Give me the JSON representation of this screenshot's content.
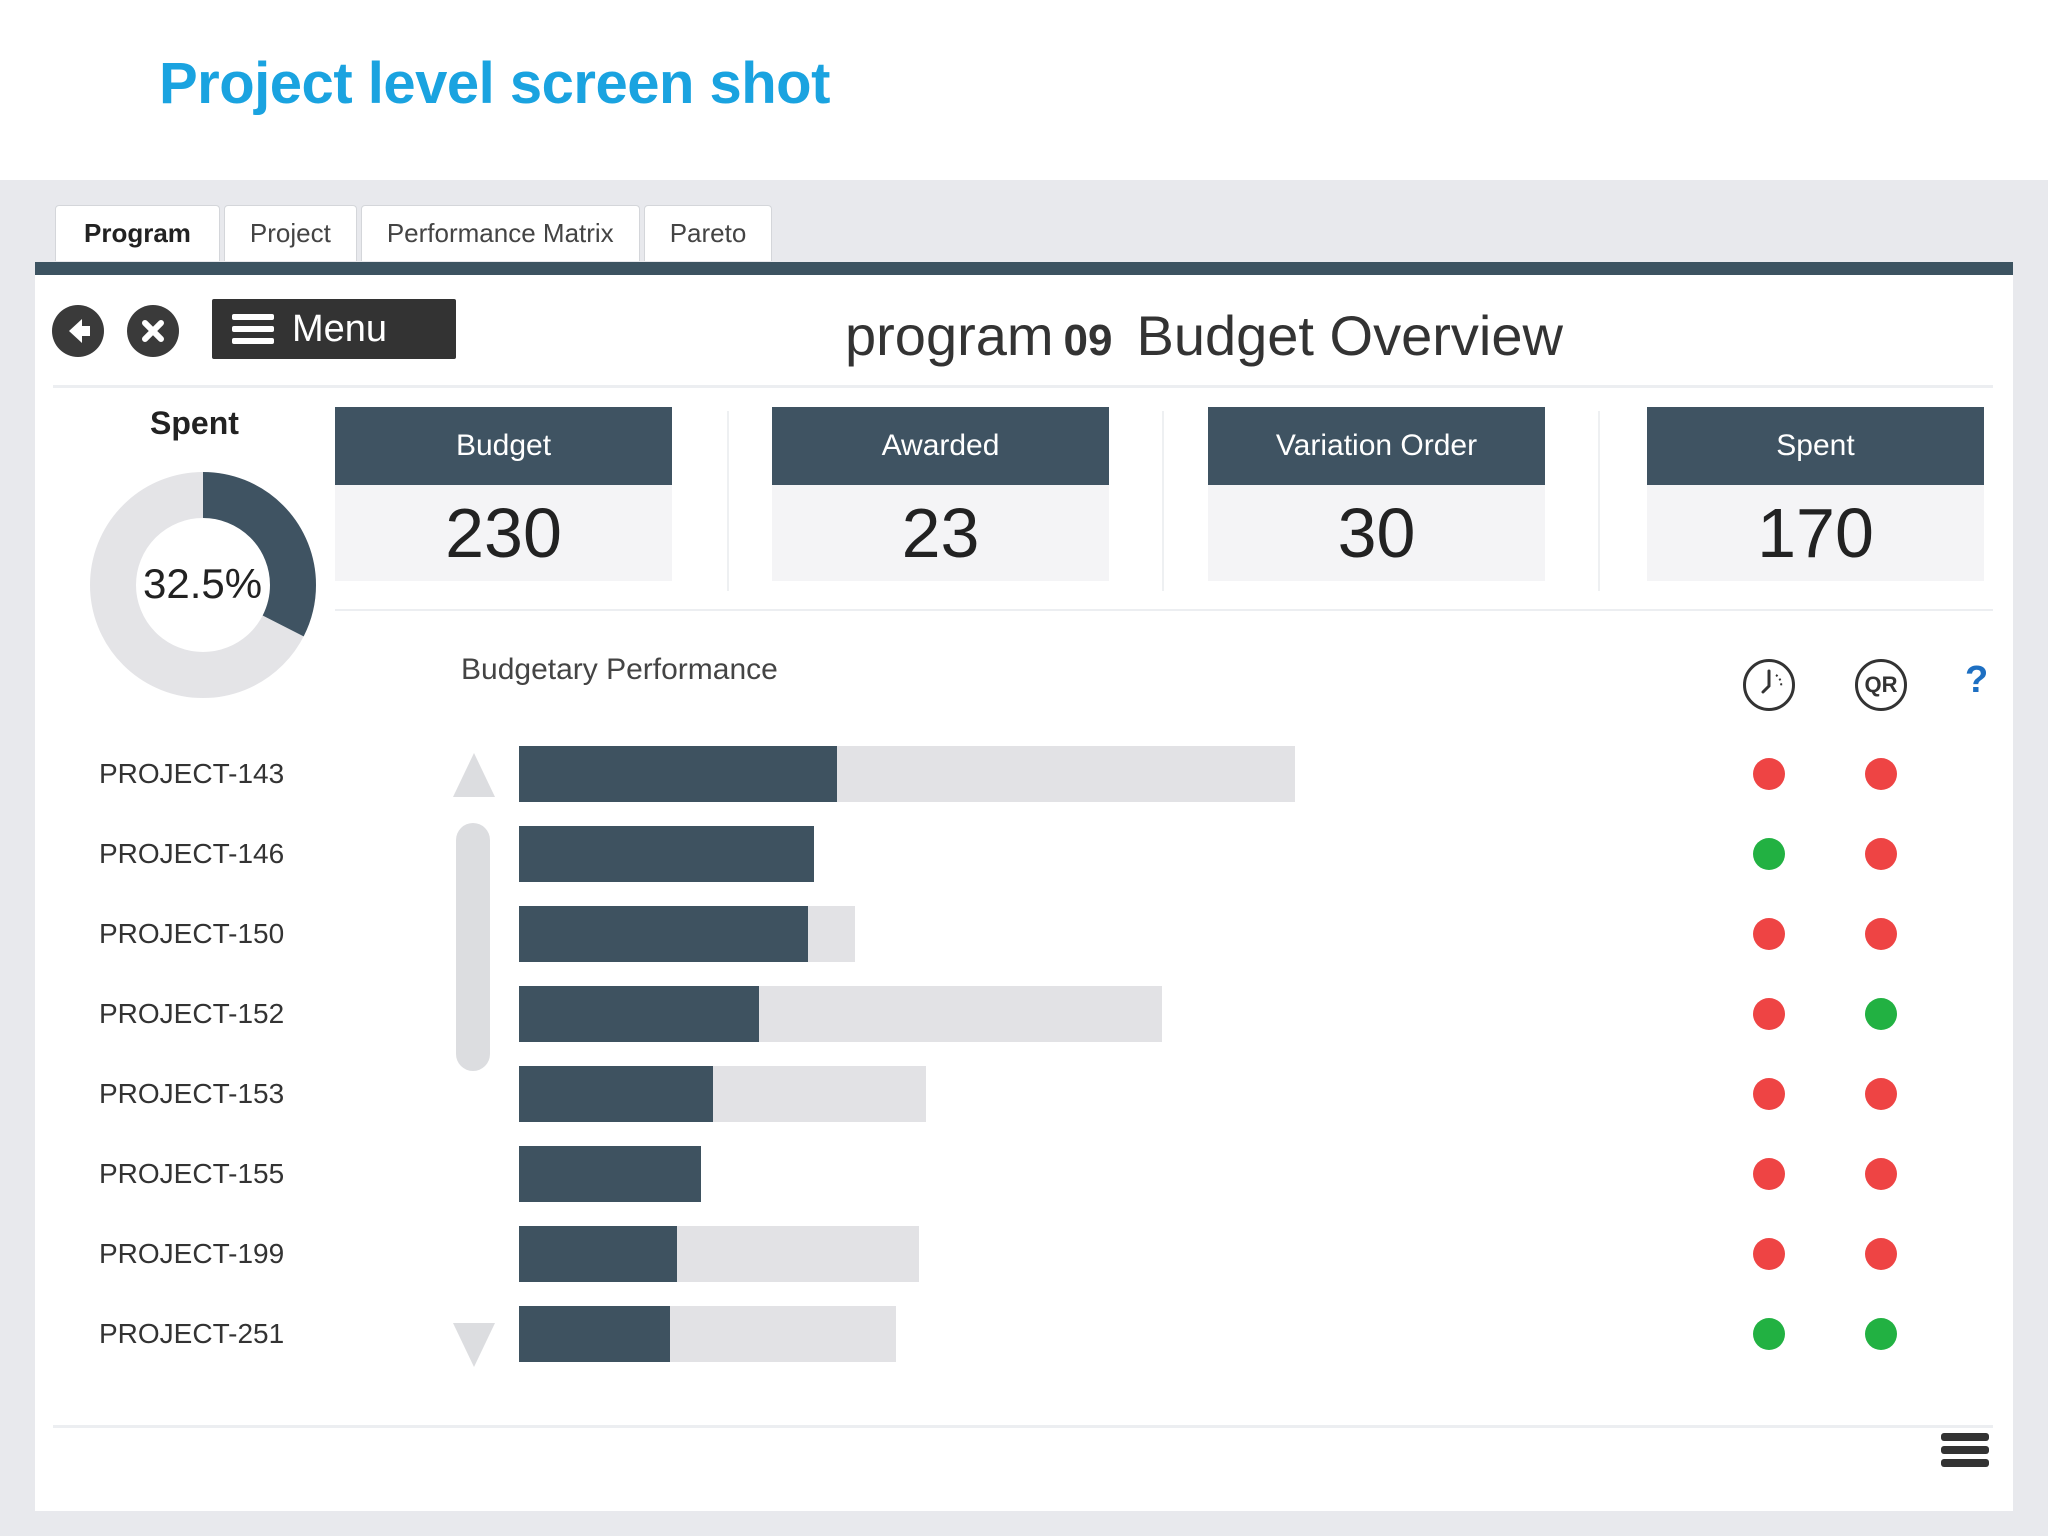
{
  "slide": {
    "title": "Project level screen shot"
  },
  "tabs": [
    {
      "label": "Program",
      "active": true
    },
    {
      "label": "Project",
      "active": false
    },
    {
      "label": "Performance Matrix",
      "active": false
    },
    {
      "label": "Pareto",
      "active": false
    }
  ],
  "toolbar": {
    "menu_label": "Menu"
  },
  "header": {
    "program_word": "program",
    "program_number": "09",
    "title": "Budget Overview"
  },
  "spent_donut": {
    "label": "Spent",
    "percent_text": "32.5%",
    "percent": 32.5
  },
  "kpis": [
    {
      "label": "Budget",
      "value": "230"
    },
    {
      "label": "Awarded",
      "value": "23"
    },
    {
      "label": "Variation Order",
      "value": "30"
    },
    {
      "label": "Spent",
      "value": "170"
    }
  ],
  "performance": {
    "title": "Budgetary Performance",
    "help": "?",
    "qr_label": "QR",
    "rows": [
      {
        "name": "PROJECT-143",
        "spent": 0.41,
        "budget": 1.0,
        "time_status": "red",
        "qr_status": "red"
      },
      {
        "name": "PROJECT-146",
        "spent": 0.38,
        "budget": 0.38,
        "time_status": "green",
        "qr_status": "red"
      },
      {
        "name": "PROJECT-150",
        "spent": 0.372,
        "budget": 0.433,
        "time_status": "red",
        "qr_status": "red"
      },
      {
        "name": "PROJECT-152",
        "spent": 0.309,
        "budget": 0.828,
        "time_status": "red",
        "qr_status": "green"
      },
      {
        "name": "PROJECT-153",
        "spent": 0.25,
        "budget": 0.525,
        "time_status": "red",
        "qr_status": "red"
      },
      {
        "name": "PROJECT-155",
        "spent": 0.234,
        "budget": 0.234,
        "time_status": "red",
        "qr_status": "red"
      },
      {
        "name": "PROJECT-199",
        "spent": 0.204,
        "budget": 0.516,
        "time_status": "red",
        "qr_status": "red"
      },
      {
        "name": "PROJECT-251",
        "spent": 0.195,
        "budget": 0.486,
        "time_status": "green",
        "qr_status": "green"
      }
    ]
  },
  "colors": {
    "title_blue": "#1aa3e0",
    "header_slate": "#3f5362",
    "status_red": "#ee4444",
    "status_green": "#22b142",
    "help_blue": "#1d6fc2"
  }
}
